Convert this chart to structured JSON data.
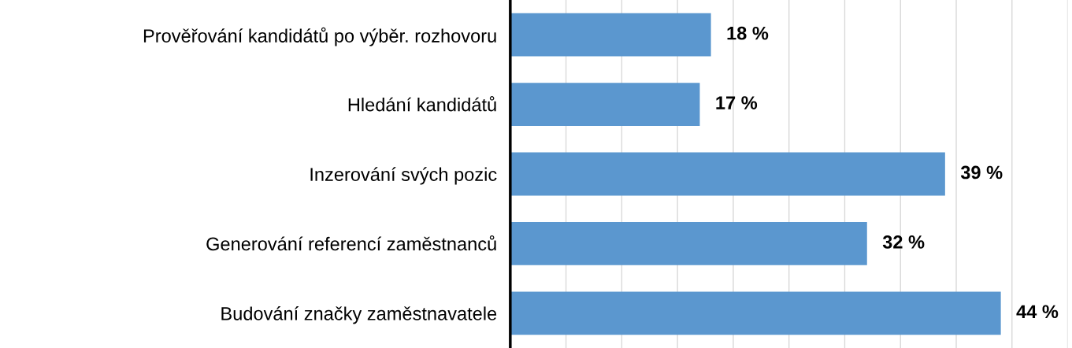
{
  "chart_data": {
    "type": "bar",
    "orientation": "horizontal",
    "categories": [
      "Prověřování kandidátů po výběr. rozhovoru",
      "Hledání kandidátů",
      "Inzerování svých pozic",
      "Generování referencí zaměstnanců",
      "Budování značky zaměstnavatele"
    ],
    "values": [
      18,
      17,
      39,
      32,
      44
    ],
    "value_labels": [
      "18 %",
      "17 %",
      "39 %",
      "32 %",
      "44 %"
    ],
    "color": "#5b97cf",
    "xlim": [
      0,
      50
    ],
    "xticks": [
      {
        "value": 0,
        "label": null
      },
      {
        "value": 5,
        "label": null
      },
      {
        "value": 10,
        "label": null
      },
      {
        "value": 15,
        "label": null
      },
      {
        "value": 20,
        "label": null
      },
      {
        "value": 25,
        "label": null
      },
      {
        "value": 30,
        "label": null
      },
      {
        "value": 35,
        "label": null
      },
      {
        "value": 40,
        "label": null
      },
      {
        "value": 45,
        "label": null
      },
      {
        "value": 50,
        "label": null
      }
    ],
    "tick_labels": "y",
    "grid": "x"
  }
}
